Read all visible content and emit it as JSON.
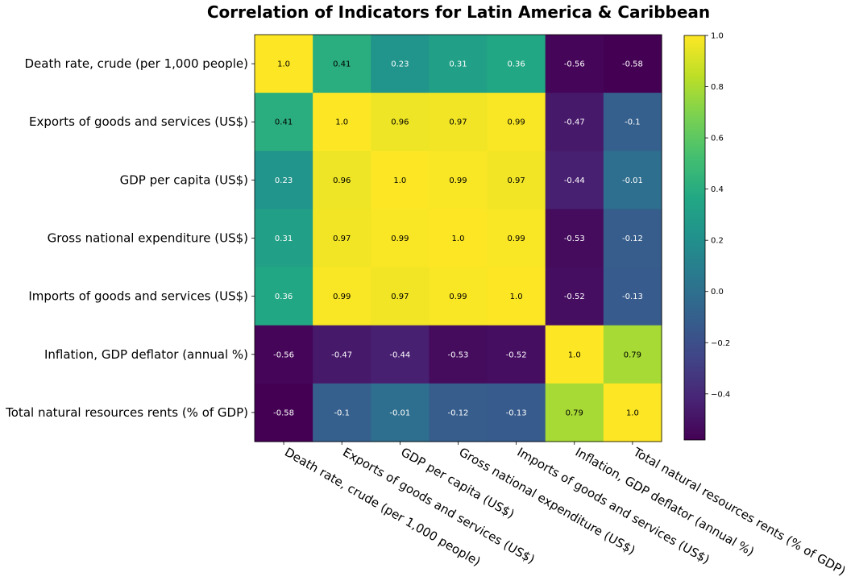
{
  "chart_data": {
    "type": "heatmap",
    "title": "Correlation of Indicators for Latin America & Caribbean",
    "rows": [
      "Death rate, crude (per 1,000 people)",
      "Exports of goods and services (US$)",
      "GDP per capita (US$)",
      "Gross national expenditure (US$)",
      "Imports of goods and services (US$)",
      "Inflation, GDP deflator (annual %)",
      "Total natural resources rents (% of GDP)"
    ],
    "columns": [
      "Death rate, crude (per 1,000 people)",
      "Exports of goods and services (US$)",
      "GDP per capita (US$)",
      "Gross national expenditure (US$)",
      "Imports of goods and services (US$)",
      "Inflation, GDP deflator (annual %)",
      "Total natural resources rents (% of GDP)"
    ],
    "values": [
      [
        1.0,
        0.41,
        0.23,
        0.31,
        0.36,
        -0.56,
        -0.58
      ],
      [
        0.41,
        1.0,
        0.96,
        0.97,
        0.99,
        -0.47,
        -0.1
      ],
      [
        0.23,
        0.96,
        1.0,
        0.99,
        0.97,
        -0.44,
        -0.01
      ],
      [
        0.31,
        0.97,
        0.99,
        1.0,
        0.99,
        -0.53,
        -0.12
      ],
      [
        0.36,
        0.99,
        0.97,
        0.99,
        1.0,
        -0.52,
        -0.13
      ],
      [
        -0.56,
        -0.47,
        -0.44,
        -0.53,
        -0.52,
        1.0,
        0.79
      ],
      [
        -0.58,
        -0.1,
        -0.01,
        -0.12,
        -0.13,
        0.79,
        1.0
      ]
    ],
    "cell_labels": [
      [
        "1.0",
        "0.41",
        "0.23",
        "0.31",
        "0.36",
        "-0.56",
        "-0.58"
      ],
      [
        "0.41",
        "1.0",
        "0.96",
        "0.97",
        "0.99",
        "-0.47",
        "-0.1"
      ],
      [
        "0.23",
        "0.96",
        "1.0",
        "0.99",
        "0.97",
        "-0.44",
        "-0.01"
      ],
      [
        "0.31",
        "0.97",
        "0.99",
        "1.0",
        "0.99",
        "-0.53",
        "-0.12"
      ],
      [
        "0.36",
        "0.99",
        "0.97",
        "0.99",
        "1.0",
        "-0.52",
        "-0.13"
      ],
      [
        "-0.56",
        "-0.47",
        "-0.44",
        "-0.53",
        "-0.52",
        "1.0",
        "0.79"
      ],
      [
        "-0.58",
        "-0.1",
        "-0.01",
        "-0.12",
        "-0.13",
        "0.79",
        "1.0"
      ]
    ],
    "colormap": "viridis",
    "color_range": [
      -0.58,
      1.0
    ],
    "colorbar_ticks": [
      "1.0",
      "0.8",
      "0.6",
      "0.4",
      "0.2",
      "0.0",
      "−0.2",
      "−0.4"
    ],
    "colorbar_tick_values": [
      1.0,
      0.8,
      0.6,
      0.4,
      0.2,
      0.0,
      -0.2,
      -0.4
    ],
    "grid": false,
    "colorbar_position": "right"
  }
}
